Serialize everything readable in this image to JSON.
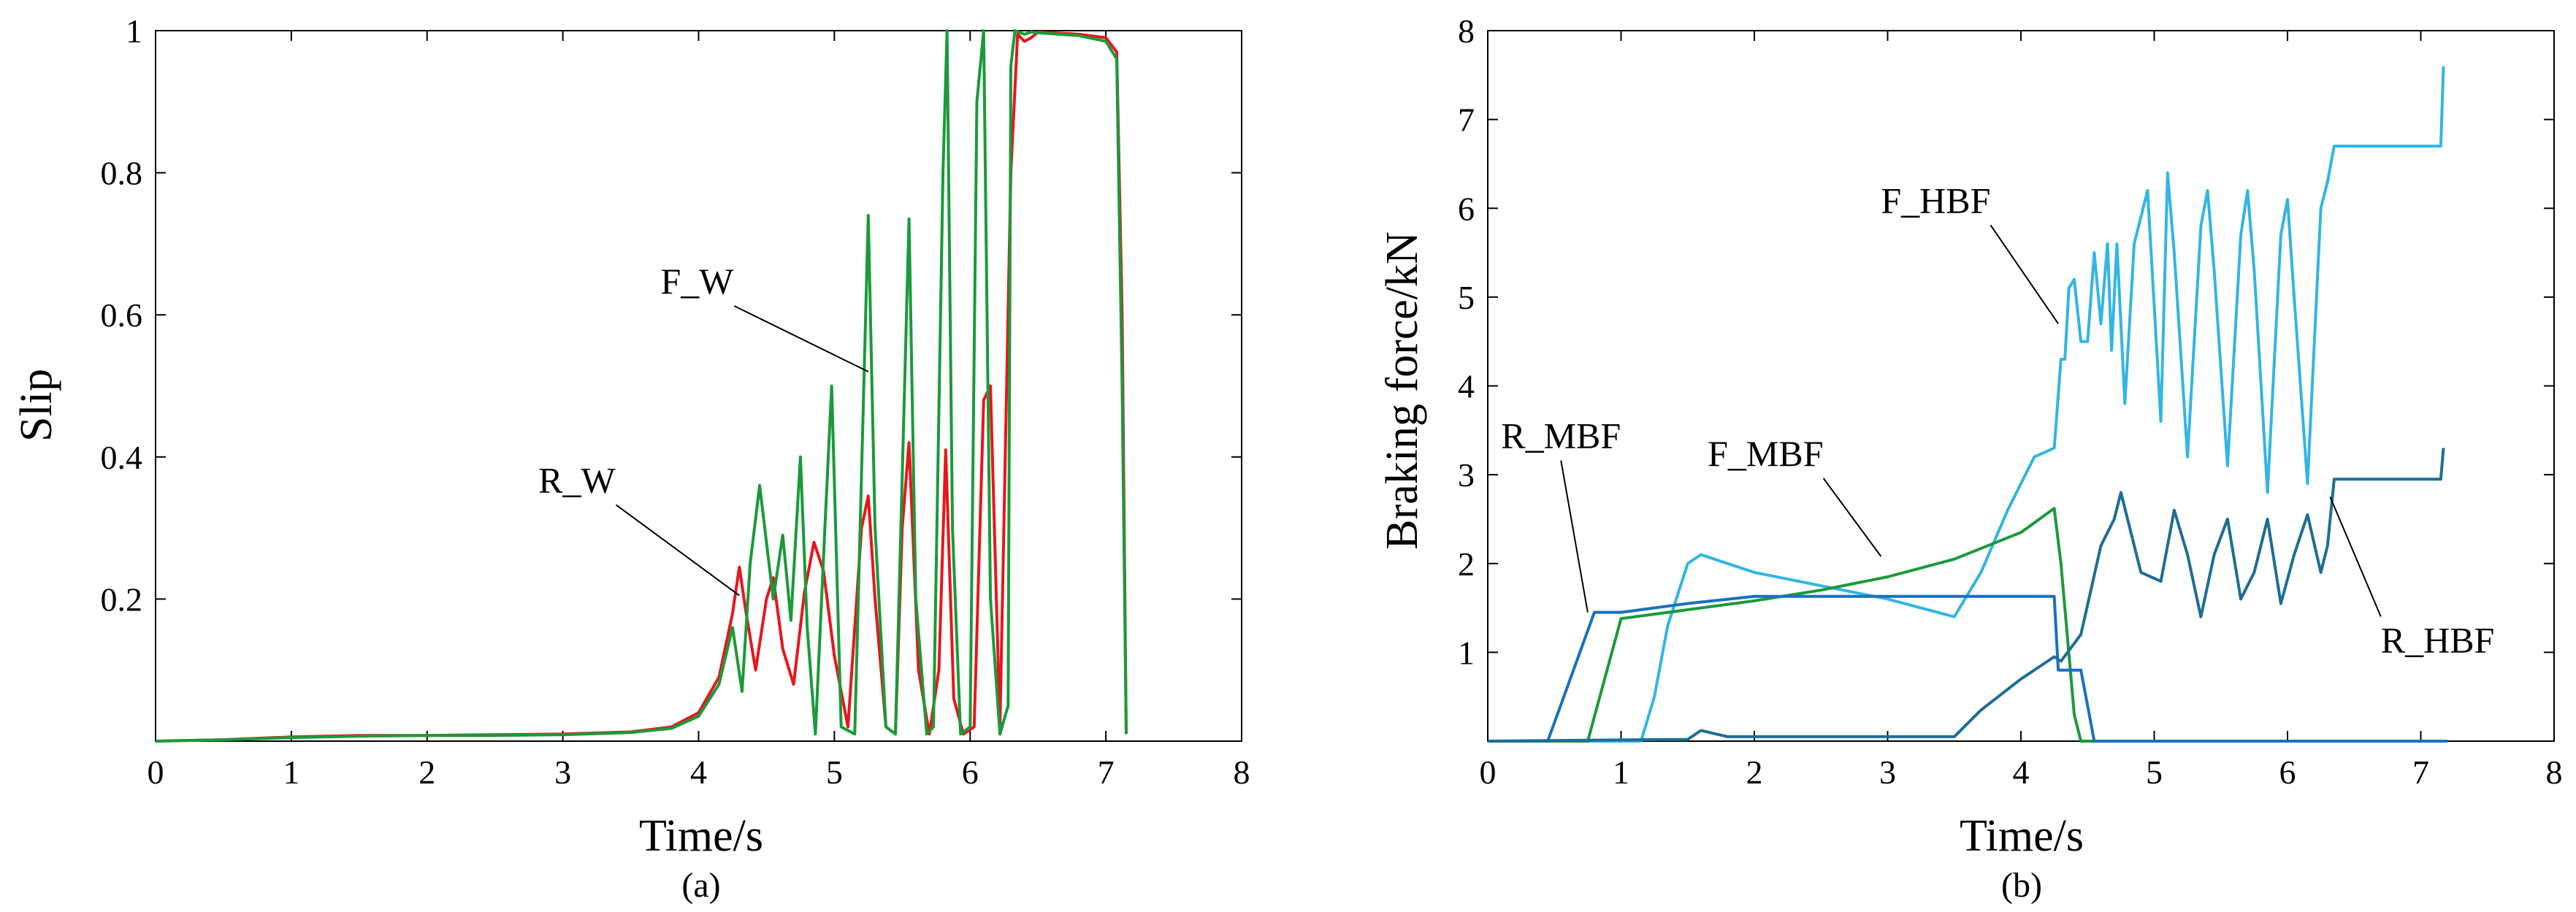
{
  "chart_data": [
    {
      "type": "line",
      "caption": "(a)",
      "xlabel": "Time/s",
      "ylabel": "Slip",
      "xlim": [
        0,
        8
      ],
      "ylim": [
        0,
        1
      ],
      "xticks": [
        0,
        1,
        2,
        3,
        4,
        5,
        6,
        7,
        8
      ],
      "yticks": [
        0.2,
        0.4,
        0.6,
        0.8,
        1
      ],
      "ytick_labels": [
        "0.2",
        "0.4",
        "0.6",
        "0.8",
        "1"
      ],
      "grid": false,
      "series": [
        {
          "name": "R_W",
          "color": "#e8161b",
          "x": [
            0,
            0.5,
            1,
            1.5,
            2,
            2.5,
            3,
            3.5,
            3.8,
            4.0,
            4.15,
            4.25,
            4.3,
            4.35,
            4.42,
            4.5,
            4.55,
            4.62,
            4.7,
            4.78,
            4.85,
            4.92,
            5.0,
            5.1,
            5.2,
            5.25,
            5.3,
            5.38,
            5.45,
            5.5,
            5.55,
            5.62,
            5.7,
            5.77,
            5.82,
            5.88,
            5.95,
            6.03,
            6.1,
            6.15,
            6.22,
            6.3,
            6.35,
            6.4,
            6.45,
            6.5,
            6.8,
            7.0,
            7.08,
            7.12,
            7.15
          ],
          "values": [
            0,
            0.002,
            0.006,
            0.008,
            0.008,
            0.009,
            0.01,
            0.013,
            0.02,
            0.04,
            0.09,
            0.18,
            0.245,
            0.18,
            0.1,
            0.2,
            0.23,
            0.13,
            0.08,
            0.21,
            0.28,
            0.24,
            0.12,
            0.02,
            0.3,
            0.345,
            0.2,
            0.02,
            0.01,
            0.3,
            0.42,
            0.1,
            0.01,
            0.1,
            0.41,
            0.06,
            0.01,
            0.02,
            0.48,
            0.5,
            0.02,
            0.8,
            0.995,
            0.985,
            0.99,
            0.998,
            0.995,
            0.99,
            0.97,
            0.6,
            0.01
          ]
        },
        {
          "name": "F_W",
          "color": "#1a9a3a",
          "x": [
            0,
            0.5,
            1,
            1.5,
            2,
            2.5,
            3,
            3.5,
            3.8,
            4.0,
            4.15,
            4.25,
            4.32,
            4.38,
            4.45,
            4.55,
            4.62,
            4.68,
            4.75,
            4.8,
            4.86,
            4.93,
            4.98,
            5.05,
            5.15,
            5.25,
            5.3,
            5.38,
            5.45,
            5.55,
            5.6,
            5.68,
            5.73,
            5.8,
            5.83,
            5.87,
            5.93,
            6.0,
            6.05,
            6.1,
            6.15,
            6.22,
            6.28,
            6.3,
            6.33,
            6.4,
            6.45,
            6.5,
            6.8,
            7.0,
            7.08,
            7.12,
            7.15
          ],
          "values": [
            0,
            0.002,
            0.005,
            0.007,
            0.008,
            0.008,
            0.009,
            0.012,
            0.018,
            0.035,
            0.08,
            0.16,
            0.07,
            0.25,
            0.36,
            0.2,
            0.29,
            0.17,
            0.4,
            0.16,
            0.01,
            0.3,
            0.5,
            0.02,
            0.01,
            0.74,
            0.3,
            0.02,
            0.01,
            0.735,
            0.2,
            0.01,
            0.02,
            0.8,
            1.0,
            0.3,
            0.01,
            0.02,
            0.9,
            1.0,
            0.2,
            0.01,
            0.05,
            0.95,
            1.0,
            0.995,
            0.998,
            0.997,
            0.993,
            0.985,
            0.96,
            0.5,
            0.01
          ]
        }
      ],
      "annotations": [
        {
          "text": "F_W",
          "x": 3.72,
          "y": 0.63,
          "target_x": 5.25,
          "target_y": 0.52
        },
        {
          "text": "R_W",
          "x": 2.82,
          "y": 0.35,
          "target_x": 4.3,
          "target_y": 0.205
        }
      ]
    },
    {
      "type": "line",
      "caption": "(b)",
      "xlabel": "Time/s",
      "ylabel": "Braking force/kN",
      "xlim": [
        0,
        8
      ],
      "ylim": [
        0,
        8
      ],
      "xticks": [
        0,
        1,
        2,
        3,
        4,
        5,
        6,
        7,
        8
      ],
      "yticks": [
        1,
        2,
        3,
        4,
        5,
        6,
        7,
        8
      ],
      "grid": false,
      "series": [
        {
          "name": "F_HBF",
          "color": "#33b5e5",
          "x": [
            0,
            1.15,
            1.25,
            1.35,
            1.5,
            1.6,
            1.8,
            2.0,
            2.5,
            3.0,
            3.5,
            3.7,
            3.9,
            4.1,
            4.25,
            4.3,
            4.33,
            4.36,
            4.4,
            4.45,
            4.5,
            4.55,
            4.6,
            4.65,
            4.68,
            4.72,
            4.78,
            4.85,
            4.95,
            5.05,
            5.1,
            5.15,
            5.25,
            5.35,
            5.4,
            5.45,
            5.55,
            5.65,
            5.7,
            5.75,
            5.85,
            5.95,
            6.0,
            6.05,
            6.15,
            6.25,
            6.3,
            6.35,
            6.4,
            7.0,
            7.15,
            7.17
          ],
          "values": [
            0,
            0,
            0.5,
            1.3,
            2.0,
            2.1,
            2.0,
            1.9,
            1.75,
            1.6,
            1.4,
            1.9,
            2.6,
            3.2,
            3.3,
            4.3,
            4.3,
            5.1,
            5.2,
            4.5,
            4.5,
            5.5,
            4.7,
            5.6,
            4.4,
            5.6,
            3.8,
            5.6,
            6.2,
            3.6,
            6.4,
            5.5,
            3.2,
            5.8,
            6.2,
            5.3,
            3.1,
            5.7,
            6.2,
            5.3,
            2.8,
            5.7,
            6.1,
            5.0,
            2.9,
            6.0,
            6.3,
            6.7,
            6.7,
            6.7,
            6.7,
            7.6
          ]
        },
        {
          "name": "F_MBF",
          "color": "#1a9a3a",
          "x": [
            0,
            0.75,
            1.0,
            1.5,
            2.0,
            2.5,
            3.0,
            3.5,
            4.0,
            4.25,
            4.3,
            4.4,
            4.45,
            7.2
          ],
          "values": [
            0,
            0,
            1.38,
            1.48,
            1.58,
            1.7,
            1.85,
            2.05,
            2.35,
            2.62,
            2.0,
            0.3,
            0,
            0
          ]
        },
        {
          "name": "R_MBF",
          "color": "#1b6fc0",
          "x": [
            0,
            0.45,
            0.8,
            1.0,
            1.5,
            2.0,
            2.5,
            3.0,
            3.5,
            4.25,
            4.28,
            4.3,
            4.45,
            4.5,
            4.55,
            7.2
          ],
          "values": [
            0,
            0,
            1.45,
            1.45,
            1.55,
            1.63,
            1.63,
            1.63,
            1.63,
            1.63,
            0.8,
            0.8,
            0.8,
            0.4,
            0,
            0
          ]
        },
        {
          "name": "R_HBF",
          "color": "#1e6d96",
          "x": [
            0,
            1.5,
            1.6,
            1.8,
            3.5,
            3.7,
            4.0,
            4.25,
            4.3,
            4.45,
            4.6,
            4.7,
            4.75,
            4.9,
            5.05,
            5.15,
            5.25,
            5.35,
            5.45,
            5.55,
            5.65,
            5.75,
            5.85,
            5.95,
            6.05,
            6.15,
            6.25,
            6.3,
            6.35,
            6.4,
            7.0,
            7.15,
            7.17
          ],
          "values": [
            0,
            0.02,
            0.12,
            0.05,
            0.05,
            0.35,
            0.7,
            0.95,
            0.9,
            1.2,
            2.2,
            2.5,
            2.8,
            1.9,
            1.8,
            2.6,
            2.1,
            1.4,
            2.1,
            2.5,
            1.6,
            1.9,
            2.5,
            1.55,
            2.1,
            2.55,
            1.9,
            2.2,
            2.95,
            2.95,
            2.95,
            2.95,
            3.3
          ]
        }
      ],
      "annotations": [
        {
          "text": "F_HBF",
          "x": 2.95,
          "y": 5.95,
          "target_x": 4.28,
          "target_y": 4.7
        },
        {
          "text": "R_MBF",
          "x": 0.1,
          "y": 3.3,
          "target_x": 0.75,
          "target_y": 1.45
        },
        {
          "text": "F_MBF",
          "x": 1.65,
          "y": 3.1,
          "target_x": 2.95,
          "target_y": 2.08
        },
        {
          "text": "R_HBF",
          "x": 6.7,
          "y": 1.0,
          "target_x": 6.32,
          "target_y": 2.75
        }
      ]
    }
  ]
}
